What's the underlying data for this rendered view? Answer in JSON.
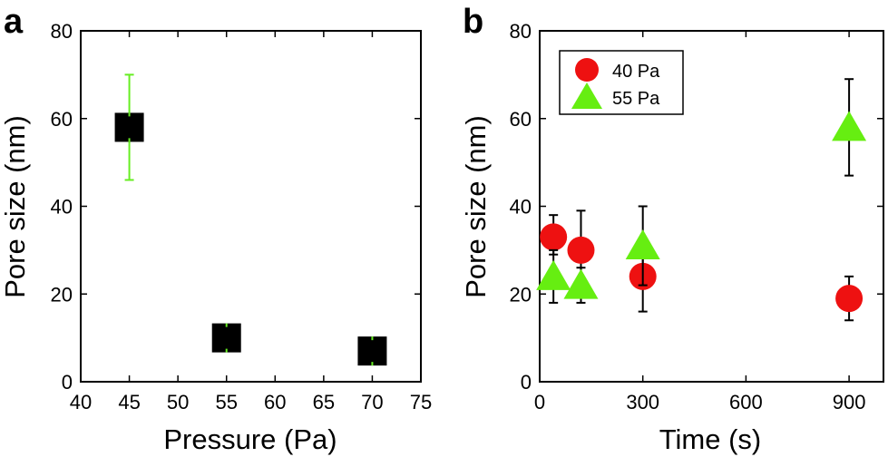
{
  "chart_data": [
    {
      "type": "scatter",
      "panel_label": "a",
      "xlabel": "Pressure (Pa)",
      "ylabel": "Pore size (nm)",
      "xlim": [
        40,
        75
      ],
      "ylim": [
        0,
        80
      ],
      "xticks": [
        40,
        45,
        50,
        55,
        60,
        65,
        70,
        75
      ],
      "yticks": [
        0,
        20,
        40,
        60,
        80
      ],
      "marker_color": "#000000",
      "errorbar_color": "#66ee22",
      "series": [
        {
          "x": [
            45,
            55,
            70
          ],
          "y": [
            58,
            10,
            7
          ],
          "err_low": [
            46,
            7.5,
            5
          ],
          "err_high": [
            70,
            12.5,
            9
          ]
        }
      ]
    },
    {
      "type": "scatter",
      "panel_label": "b",
      "xlabel": "Time (s)",
      "ylabel": "Pore size (nm)",
      "xlim": [
        0,
        1000
      ],
      "ylim": [
        0,
        80
      ],
      "xticks": [
        0,
        300,
        600,
        900
      ],
      "yticks": [
        0,
        20,
        40,
        60,
        80
      ],
      "legend_position": "top-left",
      "errorbar_color": "#000000",
      "series": [
        {
          "name": "40 Pa",
          "marker": "circle",
          "color": "#ee1111",
          "x": [
            40,
            120,
            300,
            900
          ],
          "y": [
            33,
            30,
            24,
            19
          ],
          "err_low": [
            29,
            21,
            16,
            14
          ],
          "err_high": [
            38,
            39,
            32,
            24
          ]
        },
        {
          "name": "55 Pa",
          "marker": "triangle",
          "color": "#66ee11",
          "x": [
            40,
            120,
            300,
            900
          ],
          "y": [
            24,
            22,
            31,
            58
          ],
          "err_low": [
            18,
            18,
            22,
            47
          ],
          "err_high": [
            30,
            26,
            40,
            69
          ]
        }
      ]
    }
  ]
}
